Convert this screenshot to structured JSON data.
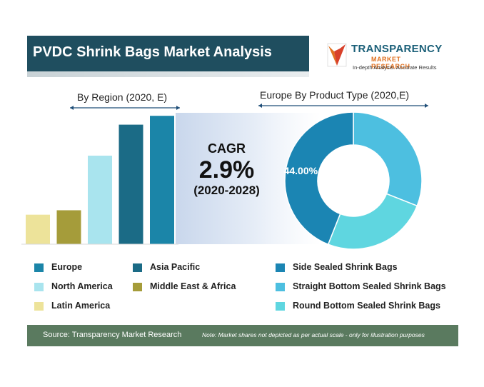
{
  "header": {
    "title": "PVDC Shrink Bags Market Analysis"
  },
  "logo": {
    "name": "TRANSPARENCY",
    "sub": "MARKET RESEARCH",
    "tagline": "In-depth Analysis. Accurate Results",
    "brand_color": "#1a5f78",
    "accent_color": "#e0701f"
  },
  "cagr": {
    "label": "CAGR",
    "value": "2.9%",
    "period": "(2020-2028)"
  },
  "chart_data": [
    {
      "type": "bar",
      "title": "By Region (2020, E)",
      "categories": [
        "Latin America",
        "Middle East & Africa",
        "North America",
        "Asia Pacific",
        "Europe"
      ],
      "values": [
        1,
        1.15,
        3,
        4.05,
        4.35
      ],
      "colors": [
        "#ede39a",
        "#a59c3a",
        "#a9e4ee",
        "#1b6b86",
        "#1b85a8"
      ],
      "ylim": [
        0,
        4.5
      ],
      "grid": false,
      "legend": [
        {
          "label": "Europe",
          "color": "#1b85a8"
        },
        {
          "label": "Asia Pacific",
          "color": "#1b6b86"
        },
        {
          "label": "North America",
          "color": "#a9e4ee"
        },
        {
          "label": "Middle East & Africa",
          "color": "#a59c3a"
        },
        {
          "label": "Latin America",
          "color": "#ede39a"
        }
      ]
    },
    {
      "type": "pie",
      "title": "Europe By Product Type (2020,E)",
      "labels": [
        "Side Sealed Shrink Bags",
        "Straight Bottom Sealed Shrink Bags",
        "Round Bottom Sealed Shrink Bags"
      ],
      "values": [
        44.0,
        31.0,
        25.0
      ],
      "colors": [
        "#1b85b3",
        "#4dbfe0",
        "#5fd6e0"
      ],
      "data_labels": [
        "44.00%",
        "",
        ""
      ],
      "legend": [
        {
          "label": "Side Sealed Shrink Bags",
          "color": "#1b85b3"
        },
        {
          "label": "Straight Bottom Sealed Shrink Bags",
          "color": "#4dbfe0"
        },
        {
          "label": "Round Bottom Sealed Shrink Bags",
          "color": "#5fd6e0"
        }
      ]
    }
  ],
  "footer": {
    "source": "Source: Transparency Market Research",
    "note": "Note: Market shares not depicted as per actual scale - only for illustration purposes"
  }
}
